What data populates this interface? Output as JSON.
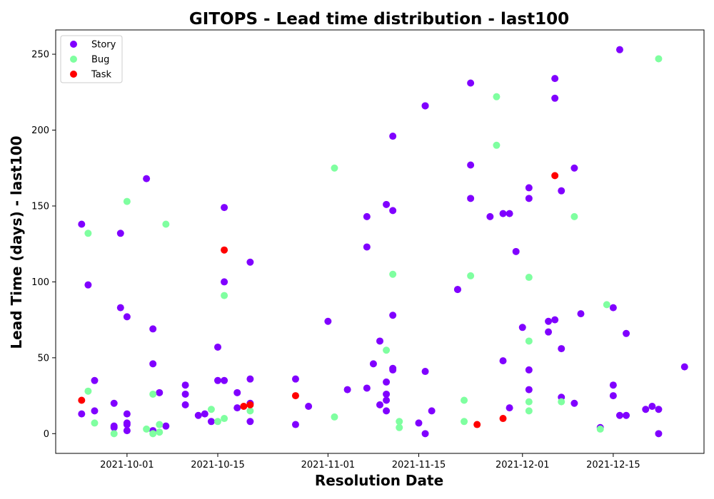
{
  "chart_data": {
    "type": "scatter",
    "title": "GITOPS - Lead time distribution - last100",
    "xlabel": "Resolution Date",
    "ylabel": "Lead Time (days) - last100",
    "x_axis_type": "date",
    "xlim": [
      "2021-09-20",
      "2021-12-29"
    ],
    "ylim": [
      -13,
      266
    ],
    "xticks": [
      "2021-10-01",
      "2021-10-15",
      "2021-11-01",
      "2021-11-15",
      "2021-12-01",
      "2021-12-15"
    ],
    "yticks": [
      0,
      50,
      100,
      150,
      200,
      250
    ],
    "grid": false,
    "legend_position": "top-left",
    "series": [
      {
        "name": "Story",
        "color": "#8000ff",
        "points": [
          [
            "2021-09-24",
            138
          ],
          [
            "2021-09-24",
            13
          ],
          [
            "2021-09-25",
            98
          ],
          [
            "2021-09-26",
            35
          ],
          [
            "2021-09-26",
            15
          ],
          [
            "2021-09-29",
            20
          ],
          [
            "2021-09-29",
            5
          ],
          [
            "2021-09-29",
            4
          ],
          [
            "2021-09-30",
            132
          ],
          [
            "2021-09-30",
            83
          ],
          [
            "2021-10-01",
            77
          ],
          [
            "2021-10-01",
            13
          ],
          [
            "2021-10-01",
            6
          ],
          [
            "2021-10-01",
            7
          ],
          [
            "2021-10-01",
            2
          ],
          [
            "2021-10-04",
            168
          ],
          [
            "2021-10-05",
            69
          ],
          [
            "2021-10-05",
            46
          ],
          [
            "2021-10-05",
            2
          ],
          [
            "2021-10-06",
            27
          ],
          [
            "2021-10-07",
            5
          ],
          [
            "2021-10-10",
            32
          ],
          [
            "2021-10-10",
            26
          ],
          [
            "2021-10-10",
            19
          ],
          [
            "2021-10-12",
            12
          ],
          [
            "2021-10-13",
            13
          ],
          [
            "2021-10-14",
            8
          ],
          [
            "2021-10-15",
            57
          ],
          [
            "2021-10-15",
            35
          ],
          [
            "2021-10-16",
            149
          ],
          [
            "2021-10-16",
            100
          ],
          [
            "2021-10-16",
            35
          ],
          [
            "2021-10-18",
            27
          ],
          [
            "2021-10-18",
            17
          ],
          [
            "2021-10-20",
            113
          ],
          [
            "2021-10-20",
            36
          ],
          [
            "2021-10-20",
            20
          ],
          [
            "2021-10-20",
            8
          ],
          [
            "2021-10-27",
            36
          ],
          [
            "2021-10-27",
            6
          ],
          [
            "2021-10-29",
            18
          ],
          [
            "2021-11-01",
            74
          ],
          [
            "2021-11-04",
            29
          ],
          [
            "2021-11-07",
            30
          ],
          [
            "2021-11-07",
            143
          ],
          [
            "2021-11-07",
            123
          ],
          [
            "2021-11-08",
            46
          ],
          [
            "2021-11-09",
            19
          ],
          [
            "2021-11-09",
            61
          ],
          [
            "2021-11-10",
            151
          ],
          [
            "2021-11-10",
            34
          ],
          [
            "2021-11-10",
            26
          ],
          [
            "2021-11-10",
            22
          ],
          [
            "2021-11-10",
            15
          ],
          [
            "2021-11-11",
            196
          ],
          [
            "2021-11-11",
            147
          ],
          [
            "2021-11-11",
            78
          ],
          [
            "2021-11-11",
            43
          ],
          [
            "2021-11-11",
            42
          ],
          [
            "2021-11-15",
            7
          ],
          [
            "2021-11-16",
            216
          ],
          [
            "2021-11-16",
            216
          ],
          [
            "2021-11-16",
            41
          ],
          [
            "2021-11-16",
            0
          ],
          [
            "2021-11-17",
            15
          ],
          [
            "2021-11-21",
            95
          ],
          [
            "2021-11-21",
            95
          ],
          [
            "2021-11-23",
            231
          ],
          [
            "2021-11-23",
            177
          ],
          [
            "2021-11-23",
            155
          ],
          [
            "2021-11-26",
            143
          ],
          [
            "2021-11-28",
            145
          ],
          [
            "2021-11-28",
            48
          ],
          [
            "2021-11-29",
            145
          ],
          [
            "2021-11-29",
            17
          ],
          [
            "2021-11-30",
            120
          ],
          [
            "2021-12-01",
            70
          ],
          [
            "2021-12-02",
            162
          ],
          [
            "2021-12-02",
            155
          ],
          [
            "2021-12-02",
            42
          ],
          [
            "2021-12-02",
            29
          ],
          [
            "2021-12-05",
            74
          ],
          [
            "2021-12-05",
            67
          ],
          [
            "2021-12-06",
            234
          ],
          [
            "2021-12-06",
            221
          ],
          [
            "2021-12-06",
            75
          ],
          [
            "2021-12-07",
            160
          ],
          [
            "2021-12-07",
            56
          ],
          [
            "2021-12-07",
            24
          ],
          [
            "2021-12-09",
            20
          ],
          [
            "2021-12-09",
            175
          ],
          [
            "2021-12-10",
            79
          ],
          [
            "2021-12-13",
            4
          ],
          [
            "2021-12-15",
            83
          ],
          [
            "2021-12-15",
            32
          ],
          [
            "2021-12-15",
            25
          ],
          [
            "2021-12-16",
            253
          ],
          [
            "2021-12-16",
            12
          ],
          [
            "2021-12-17",
            66
          ],
          [
            "2021-12-17",
            12
          ],
          [
            "2021-12-20",
            16
          ],
          [
            "2021-12-21",
            18
          ],
          [
            "2021-12-22",
            16
          ],
          [
            "2021-12-22",
            0
          ],
          [
            "2021-12-26",
            44
          ]
        ]
      },
      {
        "name": "Bug",
        "color": "#7fffa0",
        "points": [
          [
            "2021-09-25",
            132
          ],
          [
            "2021-09-25",
            28
          ],
          [
            "2021-09-26",
            7
          ],
          [
            "2021-09-29",
            0
          ],
          [
            "2021-10-01",
            153
          ],
          [
            "2021-10-04",
            3
          ],
          [
            "2021-10-05",
            26
          ],
          [
            "2021-10-05",
            0
          ],
          [
            "2021-10-06",
            6
          ],
          [
            "2021-10-06",
            1
          ],
          [
            "2021-10-07",
            138
          ],
          [
            "2021-10-14",
            16
          ],
          [
            "2021-10-15",
            8
          ],
          [
            "2021-10-16",
            91
          ],
          [
            "2021-10-16",
            10
          ],
          [
            "2021-10-20",
            15
          ],
          [
            "2021-11-02",
            175
          ],
          [
            "2021-11-02",
            11
          ],
          [
            "2021-11-10",
            55
          ],
          [
            "2021-11-11",
            105
          ],
          [
            "2021-11-12",
            8
          ],
          [
            "2021-11-12",
            4
          ],
          [
            "2021-11-22",
            22
          ],
          [
            "2021-11-22",
            8
          ],
          [
            "2021-11-23",
            104
          ],
          [
            "2021-11-27",
            222
          ],
          [
            "2021-11-27",
            190
          ],
          [
            "2021-12-02",
            103
          ],
          [
            "2021-12-02",
            61
          ],
          [
            "2021-12-02",
            21
          ],
          [
            "2021-12-02",
            15
          ],
          [
            "2021-12-07",
            21
          ],
          [
            "2021-12-09",
            143
          ],
          [
            "2021-12-14",
            85
          ],
          [
            "2021-12-13",
            3
          ],
          [
            "2021-12-22",
            247
          ]
        ]
      },
      {
        "name": "Task",
        "color": "#ff0000",
        "points": [
          [
            "2021-09-24",
            22
          ],
          [
            "2021-10-16",
            121
          ],
          [
            "2021-10-19",
            18
          ],
          [
            "2021-10-20",
            19
          ],
          [
            "2021-10-27",
            25
          ],
          [
            "2021-11-24",
            6
          ],
          [
            "2021-11-28",
            10
          ],
          [
            "2021-12-06",
            170
          ]
        ]
      }
    ]
  }
}
